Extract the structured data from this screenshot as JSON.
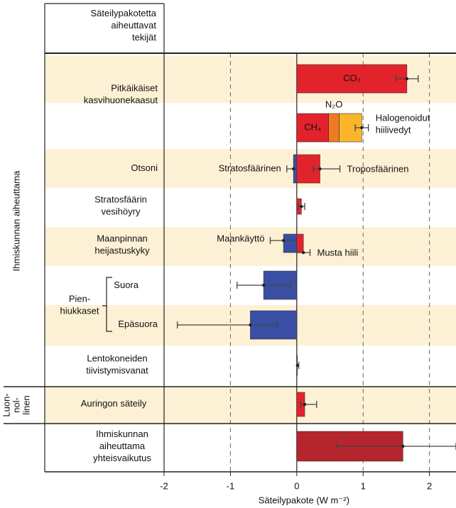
{
  "chart_data": {
    "type": "bar",
    "orientation": "horizontal",
    "header": [
      "Säteilypakotetta",
      "aiheuttavat",
      "tekijät"
    ],
    "xlabel": "Säteilypakote (W m⁻²)",
    "xlim": [
      -2,
      2.4
    ],
    "xticks": [
      -2,
      -1,
      0,
      1,
      2
    ],
    "grid": true,
    "rows": [
      {
        "label": [
          "Ihmiskunnan aiheuttama"
        ],
        "rows": [
          {
            "label": [
              "Pitkäikäiset",
              "kasvihuonekaasut"
            ],
            "bars": [
              {
                "segments": [
                  {
                    "name": "CO₂",
                    "value": 1.66,
                    "color": "#e3232b"
                  }
                ],
                "low": 1.49,
                "high": 1.83
              },
              {
                "segments": [
                  {
                    "name": "CH₄",
                    "value": 0.48,
                    "color": "#e3232b"
                  },
                  {
                    "name": "N₂O",
                    "value": 0.16,
                    "color": "#f07a24"
                  },
                  {
                    "name": [
                      "Halogenoidut",
                      "hiilivedyt"
                    ],
                    "value": 0.34,
                    "color": "#fbb52b"
                  }
                ],
                "low": 0.88,
                "high": 1.08
              }
            ]
          },
          {
            "label": [
              "Otsoni"
            ],
            "bars": [
              {
                "segments": [
                  {
                    "name": "Stratosfäärinen",
                    "value": -0.05,
                    "color": "#3a4ea3"
                  }
                ],
                "low": -0.15,
                "high": 0.05
              },
              {
                "segments": [
                  {
                    "name": "Troposfäärinen",
                    "value": 0.35,
                    "color": "#e3232b"
                  }
                ],
                "low": 0.25,
                "high": 0.65
              }
            ]
          },
          {
            "label": [
              "Stratosfäärin",
              "vesihöyry"
            ],
            "bars": [
              {
                "segments": [
                  {
                    "value": 0.07,
                    "color": "#e3232b"
                  }
                ],
                "low": 0.02,
                "high": 0.12
              }
            ]
          },
          {
            "label": [
              "Maanpinnan",
              "heijastuskyky"
            ],
            "bars": [
              {
                "segments": [
                  {
                    "name": "Maankäyttö",
                    "value": -0.2,
                    "color": "#3a4ea3"
                  }
                ],
                "low": -0.4,
                "high": 0.0
              },
              {
                "segments": [
                  {
                    "name": "Musta hiili",
                    "value": 0.1,
                    "color": "#e3232b"
                  }
                ],
                "low": 0.0,
                "high": 0.2
              }
            ]
          },
          {
            "label": [
              "Pien-",
              "hiukkaset"
            ],
            "rows": [
              {
                "label": [
                  "Suora"
                ],
                "bars": [
                  {
                    "segments": [
                      {
                        "value": -0.5,
                        "color": "#3a4ea3"
                      }
                    ],
                    "low": -0.9,
                    "high": -0.1
                  }
                ]
              },
              {
                "label": [
                  "Epäsuora"
                ],
                "bars": [
                  {
                    "segments": [
                      {
                        "value": -0.7,
                        "color": "#3a4ea3"
                      }
                    ],
                    "low": -1.8,
                    "high": -0.3
                  }
                ]
              }
            ]
          },
          {
            "label": [
              "Lentokoneiden",
              "tiivistymisvanat"
            ],
            "bars": [
              {
                "segments": [
                  {
                    "value": 0.01,
                    "color": "#e3232b"
                  }
                ],
                "low": 0.003,
                "high": 0.03
              }
            ]
          }
        ]
      },
      {
        "label": [
          "Luon-",
          "nol-",
          "linen"
        ],
        "rows": [
          {
            "label": [
              "Auringon säteily"
            ],
            "bars": [
              {
                "segments": [
                  {
                    "value": 0.12,
                    "color": "#e3232b"
                  }
                ],
                "low": 0.06,
                "high": 0.3
              }
            ]
          }
        ]
      },
      {
        "label": [
          "Ihmiskunnan",
          "aiheuttama",
          "yhteisvaikutus"
        ],
        "bars": [
          {
            "segments": [
              {
                "value": 1.6,
                "color": "#b5252d"
              }
            ],
            "low": 0.6,
            "high": 2.4
          }
        ]
      }
    ]
  }
}
